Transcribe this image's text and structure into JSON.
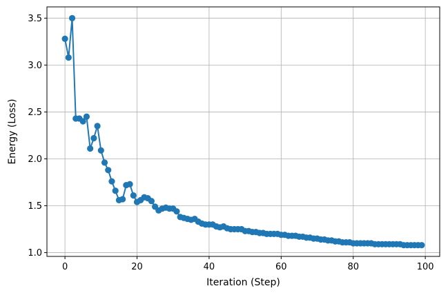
{
  "chart_data": {
    "type": "line",
    "title": "",
    "xlabel": "Iteration (Step)",
    "ylabel": "Energy (Loss)",
    "xlim": [
      -5,
      104
    ],
    "ylim": [
      0.96,
      3.62
    ],
    "xticks": [
      0,
      20,
      40,
      60,
      80,
      100
    ],
    "yticks": [
      1.0,
      1.5,
      2.0,
      2.5,
      3.0,
      3.5
    ],
    "xtick_labels": [
      "0",
      "20",
      "40",
      "60",
      "80",
      "100"
    ],
    "ytick_labels": [
      "1.0",
      "1.5",
      "2.0",
      "2.5",
      "3.0",
      "3.5"
    ],
    "grid": true,
    "legend": "none",
    "color": "#1f77b4",
    "series": [
      {
        "x": [
          0,
          1,
          2,
          3,
          4,
          5,
          6,
          7,
          8,
          9,
          10,
          11,
          12,
          13,
          14,
          15,
          16,
          17,
          18,
          19,
          20,
          21,
          22,
          23,
          24,
          25,
          26,
          27,
          28,
          29,
          30,
          31,
          32,
          33,
          34,
          35,
          36,
          37,
          38,
          39,
          40,
          41,
          42,
          43,
          44,
          45,
          46,
          47,
          48,
          49,
          50,
          51,
          52,
          53,
          54,
          55,
          56,
          57,
          58,
          59,
          60,
          61,
          62,
          63,
          64,
          65,
          66,
          67,
          68,
          69,
          70,
          71,
          72,
          73,
          74,
          75,
          76,
          77,
          78,
          79,
          80,
          81,
          82,
          83,
          84,
          85,
          86,
          87,
          88,
          89,
          90,
          91,
          92,
          93,
          94,
          95,
          96,
          97,
          98,
          99
        ],
        "values": [
          3.28,
          3.08,
          3.5,
          2.43,
          2.43,
          2.4,
          2.45,
          2.11,
          2.22,
          2.35,
          2.09,
          1.96,
          1.88,
          1.76,
          1.66,
          1.56,
          1.57,
          1.72,
          1.73,
          1.61,
          1.54,
          1.56,
          1.59,
          1.58,
          1.55,
          1.49,
          1.45,
          1.47,
          1.48,
          1.47,
          1.47,
          1.44,
          1.38,
          1.37,
          1.36,
          1.35,
          1.36,
          1.33,
          1.31,
          1.3,
          1.3,
          1.3,
          1.28,
          1.27,
          1.28,
          1.26,
          1.25,
          1.25,
          1.25,
          1.25,
          1.23,
          1.23,
          1.22,
          1.22,
          1.21,
          1.21,
          1.2,
          1.2,
          1.2,
          1.2,
          1.19,
          1.19,
          1.18,
          1.18,
          1.18,
          1.17,
          1.17,
          1.16,
          1.16,
          1.15,
          1.15,
          1.14,
          1.14,
          1.13,
          1.13,
          1.12,
          1.12,
          1.11,
          1.11,
          1.11,
          1.1,
          1.1,
          1.1,
          1.1,
          1.1,
          1.1,
          1.09,
          1.09,
          1.09,
          1.09,
          1.09,
          1.09,
          1.09,
          1.09,
          1.08,
          1.08,
          1.08,
          1.08,
          1.08,
          1.08
        ]
      }
    ]
  }
}
